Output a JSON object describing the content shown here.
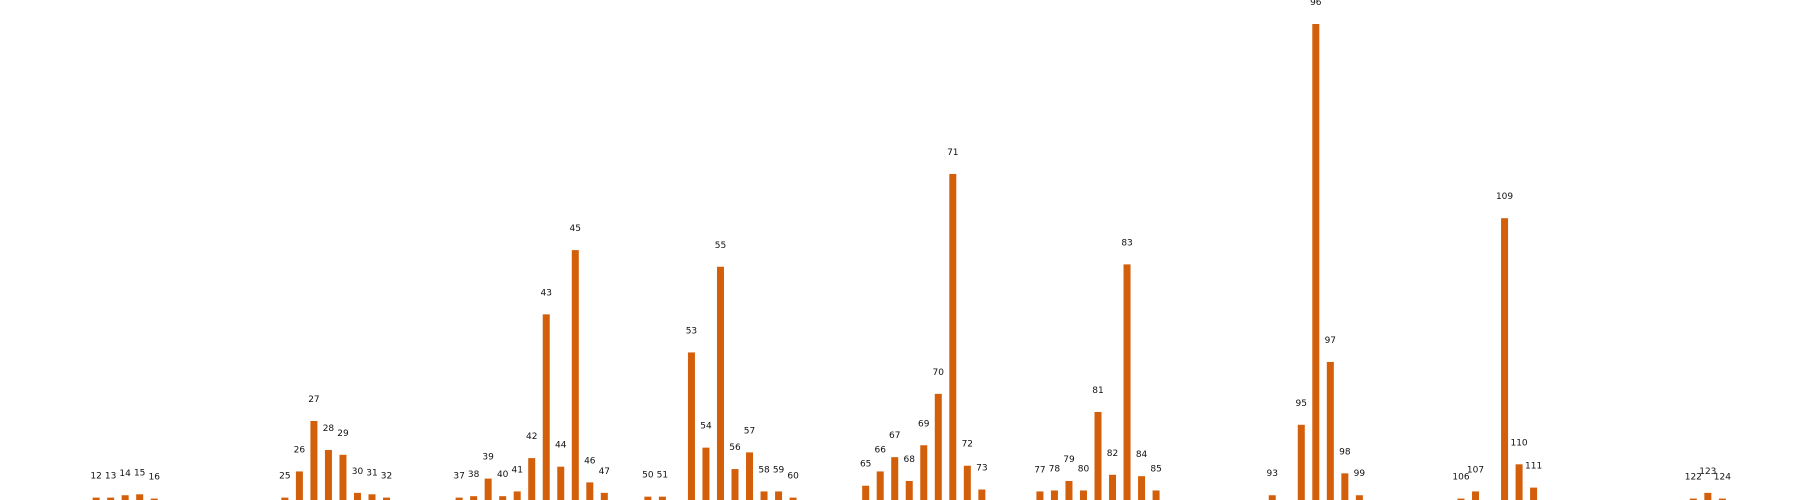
{
  "chart_data": {
    "type": "bar",
    "title": "",
    "xlabel": "",
    "ylabel": "",
    "grid": false,
    "show_axes": false,
    "color": "#d35f0a",
    "ylim": [
      0,
      100
    ],
    "xlim": [
      6,
      129
    ],
    "categories": [
      "12",
      "13",
      "14",
      "15",
      "16",
      "25",
      "26",
      "27",
      "28",
      "29",
      "30",
      "31",
      "32",
      "37",
      "38",
      "39",
      "40",
      "41",
      "42",
      "43",
      "44",
      "45",
      "46",
      "47",
      "50",
      "51",
      "53",
      "54",
      "55",
      "56",
      "57",
      "58",
      "59",
      "60",
      "65",
      "66",
      "67",
      "68",
      "69",
      "70",
      "71",
      "72",
      "73",
      "77",
      "78",
      "79",
      "80",
      "81",
      "82",
      "83",
      "84",
      "85",
      "93",
      "95",
      "96",
      "97",
      "98",
      "99",
      "106",
      "107",
      "109",
      "110",
      "111",
      "122",
      "123",
      "124"
    ],
    "x": [
      12,
      13,
      14,
      15,
      16,
      25,
      26,
      27,
      28,
      29,
      30,
      31,
      32,
      37,
      38,
      39,
      40,
      41,
      42,
      43,
      44,
      45,
      46,
      47,
      50,
      51,
      53,
      54,
      55,
      56,
      57,
      58,
      59,
      60,
      65,
      66,
      67,
      68,
      69,
      70,
      71,
      72,
      73,
      77,
      78,
      79,
      80,
      81,
      82,
      83,
      84,
      85,
      93,
      95,
      96,
      97,
      98,
      99,
      106,
      107,
      109,
      110,
      111,
      122,
      123,
      124
    ],
    "values": [
      0.5,
      0.5,
      1,
      1.2,
      0.3,
      0.5,
      6,
      16.6,
      10.5,
      9.5,
      1.5,
      1.2,
      0.5,
      0.5,
      0.8,
      4.5,
      0.8,
      1.8,
      8.8,
      39,
      7,
      52.5,
      3.7,
      1.5,
      0.7,
      0.7,
      31,
      11,
      49,
      6.5,
      10,
      1.8,
      1.8,
      0.5,
      3,
      6,
      9,
      4,
      11.5,
      22.3,
      68.5,
      7.2,
      2.2,
      1.8,
      2,
      4,
      2,
      18.5,
      5.3,
      49.5,
      5,
      2,
      1,
      15.8,
      100,
      29,
      5.6,
      1,
      0.3,
      1.8,
      59.2,
      7.5,
      2.6,
      0.3,
      1.5,
      0.3
    ]
  }
}
